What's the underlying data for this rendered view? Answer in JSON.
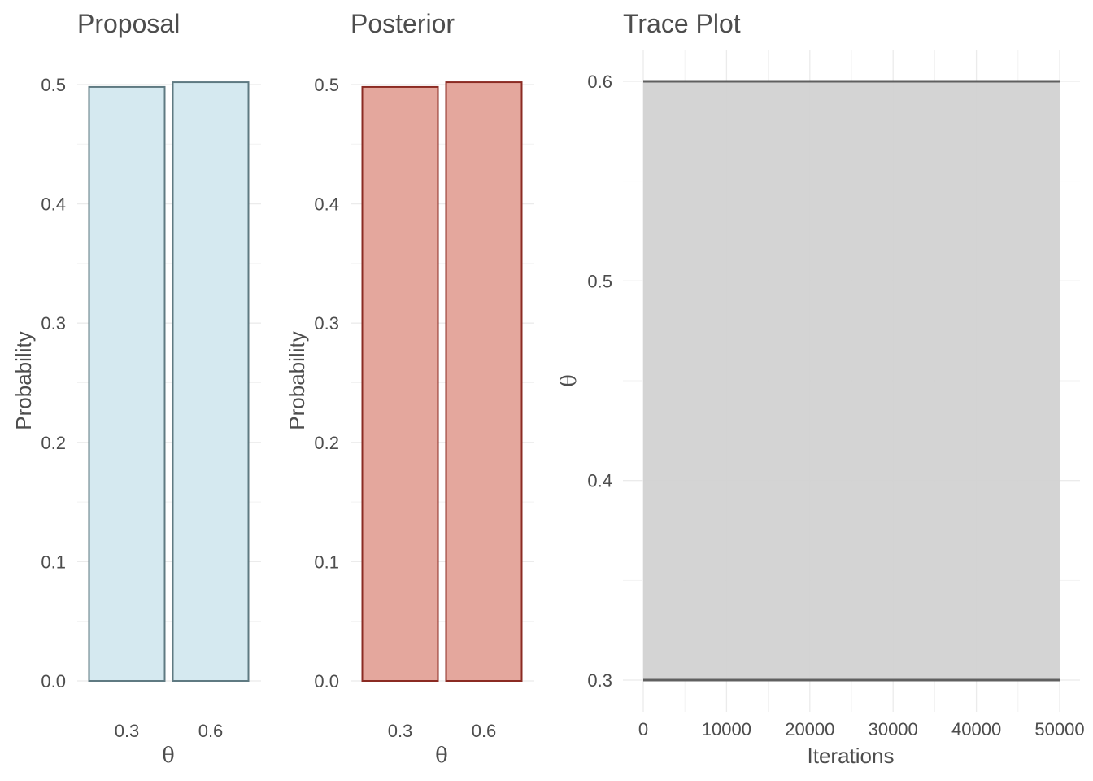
{
  "chart_data": [
    {
      "type": "bar",
      "title": "Proposal",
      "xlabel": "θ",
      "ylabel": "Probability",
      "categories": [
        "0.3",
        "0.6"
      ],
      "values": [
        0.498,
        0.502
      ],
      "ylim": [
        0,
        0.5
      ],
      "yticks": [
        "0.0",
        "0.1",
        "0.2",
        "0.3",
        "0.4",
        "0.5"
      ],
      "fill_color": "#d5e9f0",
      "stroke_color": "#5f7a82"
    },
    {
      "type": "bar",
      "title": "Posterior",
      "xlabel": "θ",
      "ylabel": "Probability",
      "categories": [
        "0.3",
        "0.6"
      ],
      "values": [
        0.498,
        0.502
      ],
      "ylim": [
        0,
        0.5
      ],
      "yticks": [
        "0.0",
        "0.1",
        "0.2",
        "0.3",
        "0.4",
        "0.5"
      ],
      "fill_color": "#e4a79d",
      "stroke_color": "#8b2b23"
    },
    {
      "type": "line",
      "title": "Trace Plot",
      "xlabel": "Iterations",
      "ylabel": "θ",
      "xlim": [
        0,
        50000
      ],
      "ylim": [
        0.3,
        0.6
      ],
      "xticks": [
        "0",
        "10000",
        "20000",
        "30000",
        "40000",
        "50000"
      ],
      "yticks": [
        "0.3",
        "0.4",
        "0.5",
        "0.6"
      ],
      "series": [
        {
          "name": "theta",
          "description_values": [
            0.3,
            0.6
          ],
          "x_range": [
            0,
            50000
          ],
          "fill_color": "#d0d0d0",
          "line_color": "#606060"
        }
      ]
    }
  ]
}
